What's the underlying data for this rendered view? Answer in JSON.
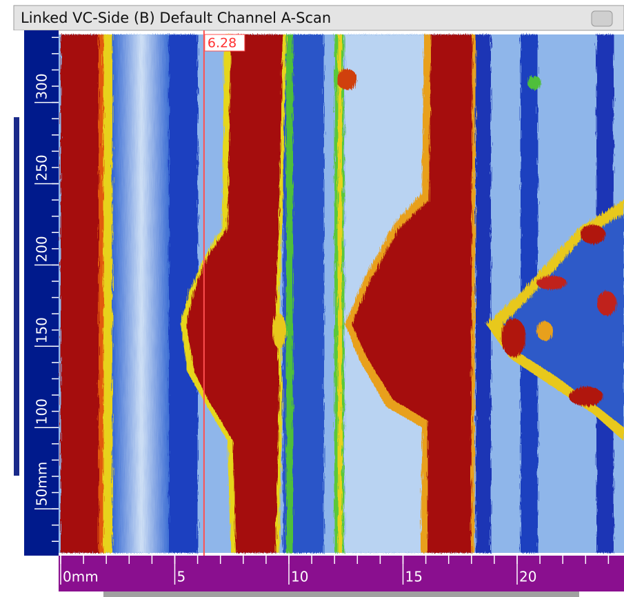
{
  "window": {
    "title": "Linked VC-Side (B) Default Channel A-Scan"
  },
  "cursor": {
    "value": 6.28
  },
  "y_ruler": {
    "ticks": [
      {
        "value": 50,
        "label": "50mm"
      },
      100,
      150,
      200,
      250,
      300
    ]
  },
  "x_ruler": {
    "ticks": [
      {
        "value": 0,
        "label": "0mm"
      },
      5,
      10,
      15,
      20
    ]
  }
}
